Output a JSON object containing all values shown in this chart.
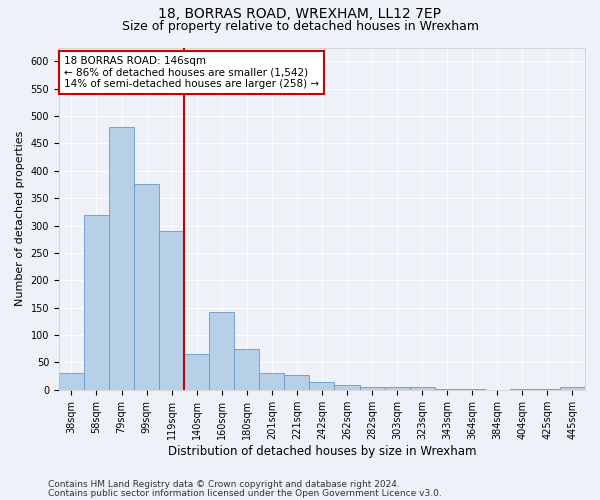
{
  "title1": "18, BORRAS ROAD, WREXHAM, LL12 7EP",
  "title2": "Size of property relative to detached houses in Wrexham",
  "xlabel": "Distribution of detached houses by size in Wrexham",
  "ylabel": "Number of detached properties",
  "bar_color": "#b8cfe8",
  "bar_edge_color": "#6699cc",
  "bar_width": 1.0,
  "categories": [
    "38sqm",
    "58sqm",
    "79sqm",
    "99sqm",
    "119sqm",
    "140sqm",
    "160sqm",
    "180sqm",
    "201sqm",
    "221sqm",
    "242sqm",
    "262sqm",
    "282sqm",
    "303sqm",
    "323sqm",
    "343sqm",
    "364sqm",
    "384sqm",
    "404sqm",
    "425sqm",
    "445sqm"
  ],
  "values": [
    30,
    320,
    480,
    375,
    290,
    65,
    143,
    75,
    30,
    27,
    15,
    8,
    5,
    5,
    5,
    2,
    2,
    0,
    2,
    2,
    5
  ],
  "ylim": [
    0,
    625
  ],
  "yticks": [
    0,
    50,
    100,
    150,
    200,
    250,
    300,
    350,
    400,
    450,
    500,
    550,
    600
  ],
  "vline_x_index": 5,
  "annotation_title": "18 BORRAS ROAD: 146sqm",
  "annotation_line1": "← 86% of detached houses are smaller (1,542)",
  "annotation_line2": "14% of semi-detached houses are larger (258) →",
  "vline_color": "#cc0000",
  "annotation_box_color": "#ffffff",
  "annotation_box_edge": "#cc0000",
  "footnote1": "Contains HM Land Registry data © Crown copyright and database right 2024.",
  "footnote2": "Contains public sector information licensed under the Open Government Licence v3.0.",
  "background_color": "#eef2f8",
  "grid_color": "#ffffff",
  "title1_fontsize": 10,
  "title2_fontsize": 9,
  "xlabel_fontsize": 8.5,
  "ylabel_fontsize": 8,
  "tick_fontsize": 7,
  "footnote_fontsize": 6.5,
  "annotation_fontsize": 7.5
}
